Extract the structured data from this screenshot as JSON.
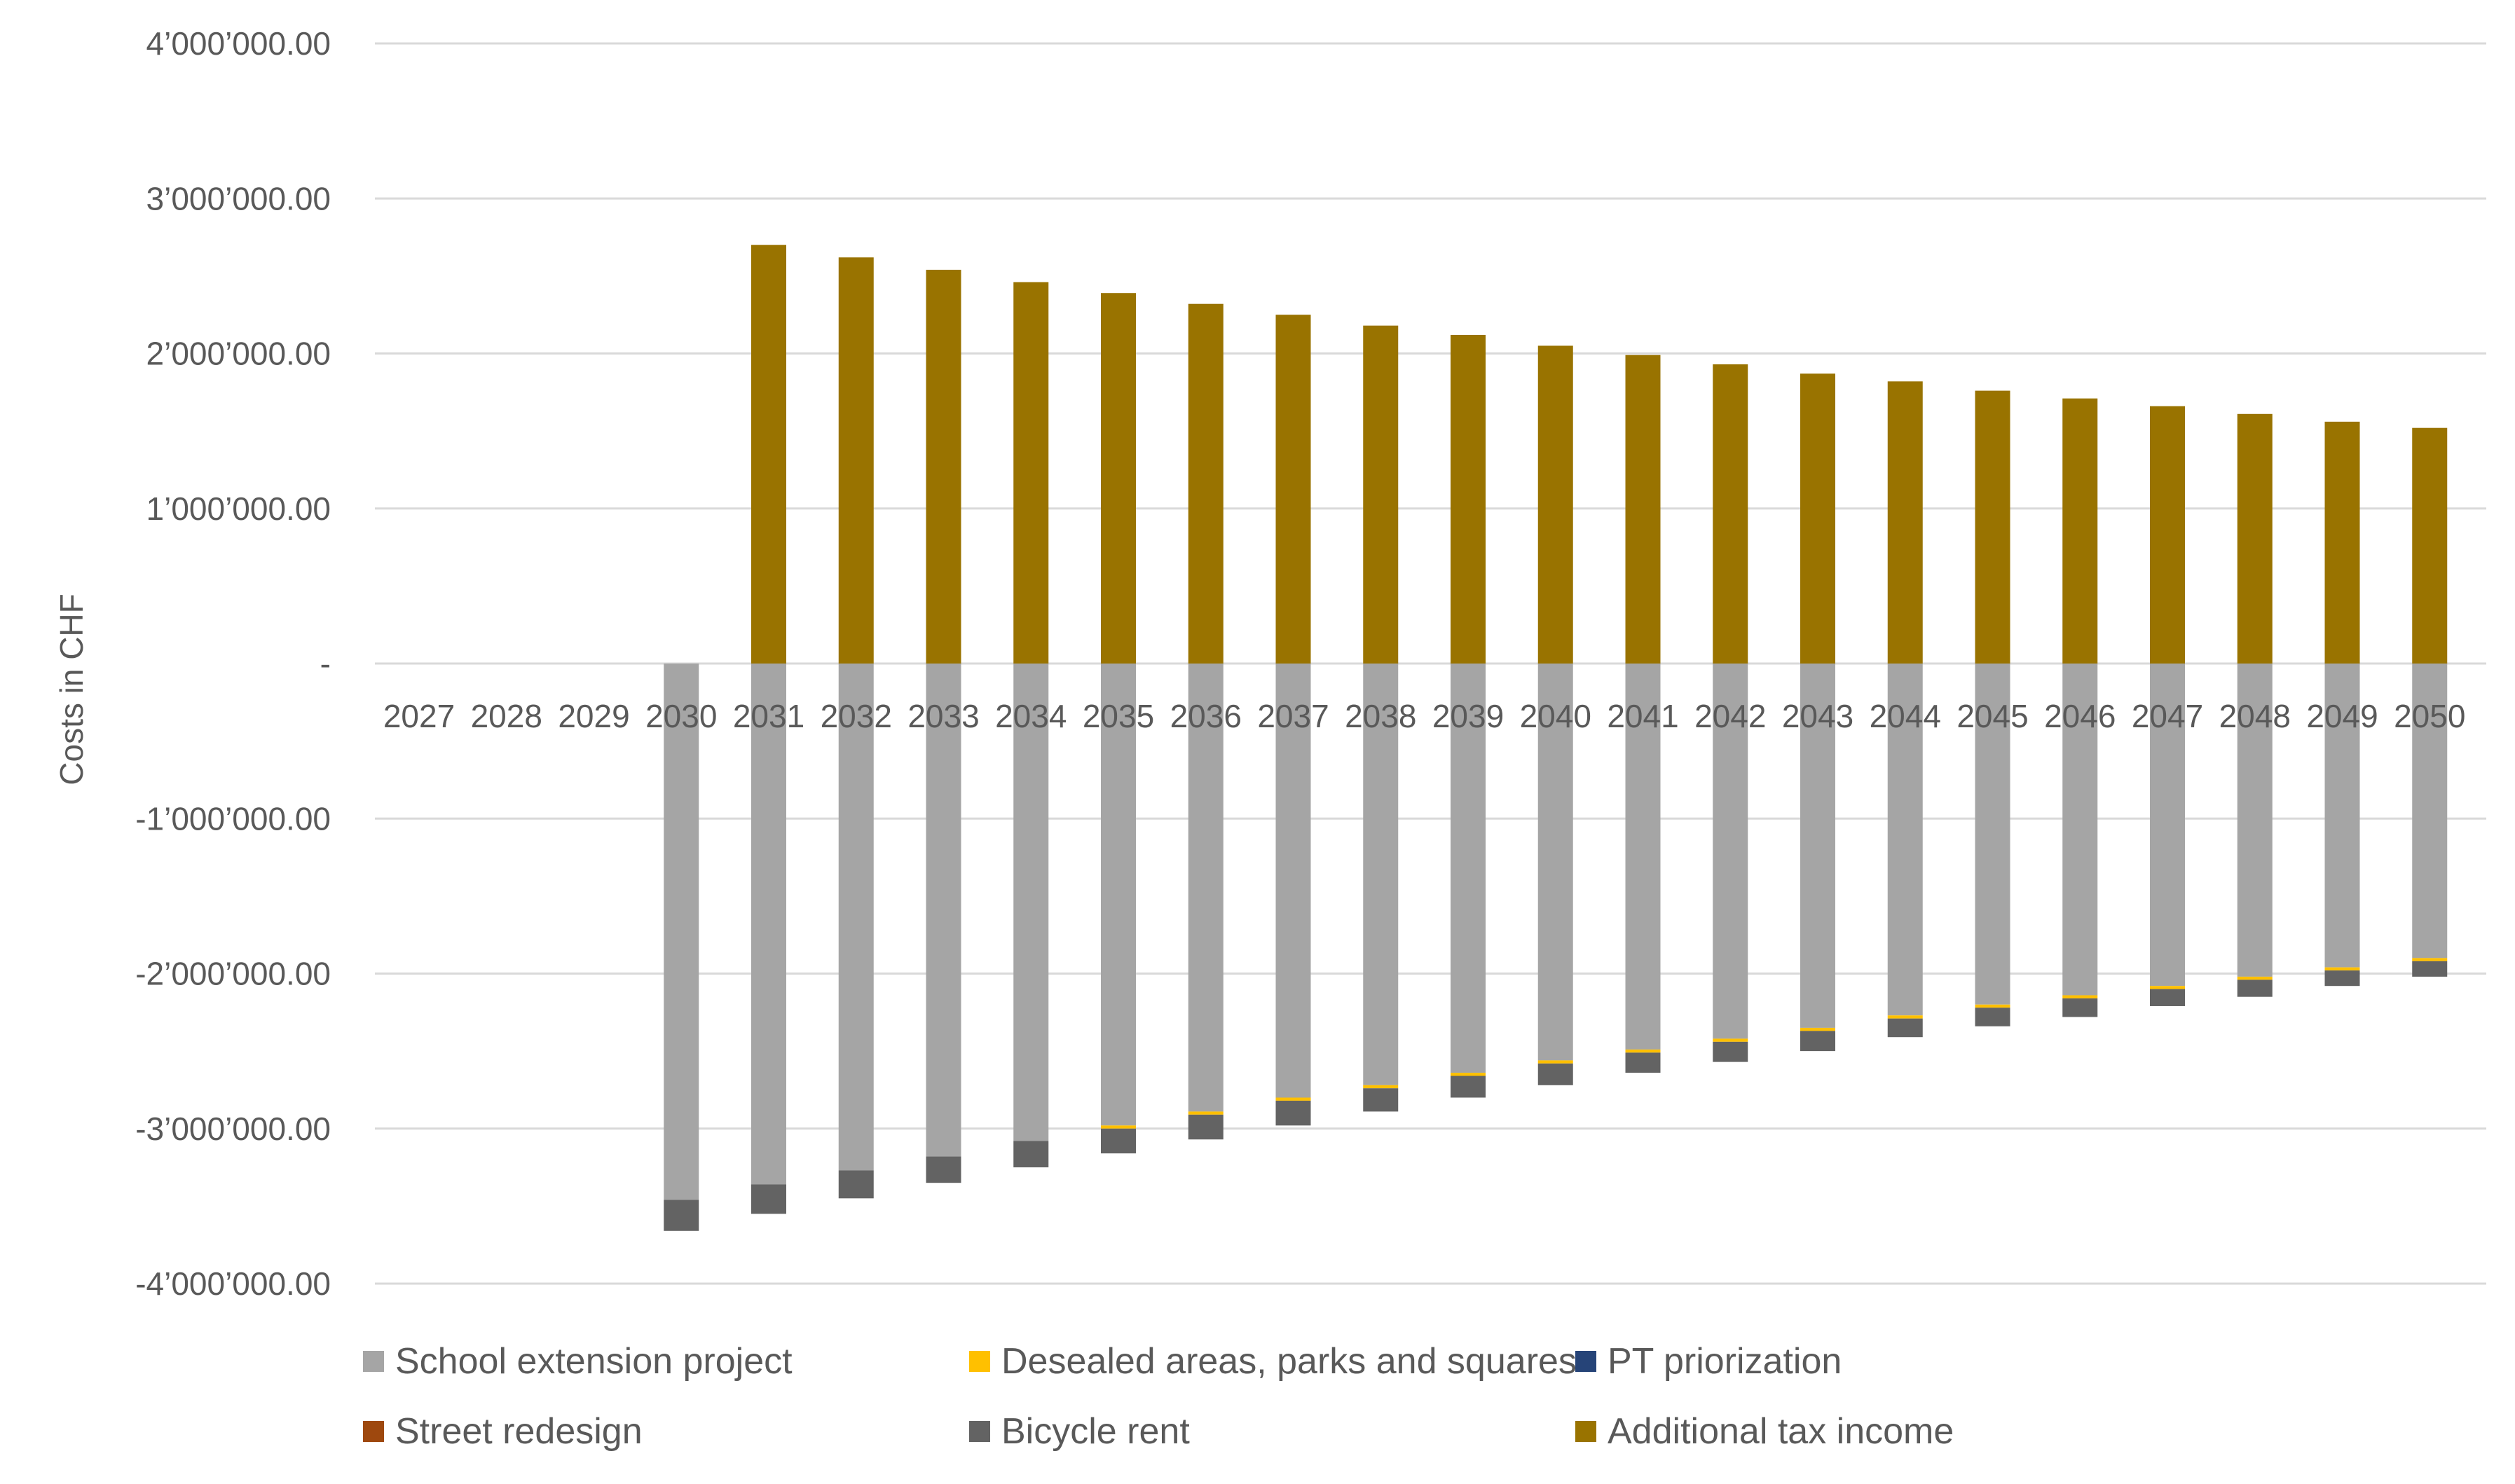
{
  "chart_data": {
    "type": "bar",
    "stacked": true,
    "title": "",
    "xlabel": "",
    "ylabel": "Costs in CHF",
    "ylim": [
      -4000000,
      4000000
    ],
    "y_ticks": [
      4000000,
      3000000,
      2000000,
      1000000,
      0,
      -1000000,
      -2000000,
      -3000000,
      -4000000
    ],
    "y_tick_labels": [
      "4’000’000.00",
      "3’000’000.00",
      "2’000’000.00",
      "1’000’000.00",
      "-",
      "-1’000’000.00",
      "-2’000’000.00",
      "-3’000’000.00",
      "-4’000’000.00"
    ],
    "grid": true,
    "legend_position": "bottom",
    "categories": [
      "2027",
      "2028",
      "2029",
      "2030",
      "2031",
      "2032",
      "2033",
      "2034",
      "2035",
      "2036",
      "2037",
      "2038",
      "2039",
      "2040",
      "2041",
      "2042",
      "2043",
      "2044",
      "2045",
      "2046",
      "2047",
      "2048",
      "2049",
      "2050"
    ],
    "series": [
      {
        "name": "School extension project",
        "color": "#A5A5A5",
        "values": [
          0,
          0,
          0,
          -3460000,
          -3360000,
          -3270000,
          -3180000,
          -3080000,
          -2980000,
          -2890000,
          -2800000,
          -2720000,
          -2640000,
          -2560000,
          -2490000,
          -2420000,
          -2350000,
          -2270000,
          -2200000,
          -2140000,
          -2080000,
          -2020000,
          -1960000,
          -1900000
        ]
      },
      {
        "name": "Desealed areas, parks and squares",
        "color": "#FFC000",
        "values": [
          0,
          0,
          0,
          0,
          0,
          0,
          0,
          0,
          -20000,
          -20000,
          -20000,
          -20000,
          -20000,
          -20000,
          -20000,
          -20000,
          -20000,
          -20000,
          -20000,
          -20000,
          -20000,
          -20000,
          -20000,
          -20000
        ]
      },
      {
        "name": "PT priorization",
        "color": "#264478",
        "values": [
          0,
          0,
          0,
          0,
          0,
          0,
          0,
          0,
          0,
          0,
          0,
          0,
          0,
          0,
          0,
          0,
          0,
          0,
          0,
          0,
          0,
          0,
          0,
          0
        ]
      },
      {
        "name": "Street redesign",
        "color": "#9E480E",
        "values": [
          0,
          0,
          0,
          0,
          0,
          0,
          0,
          0,
          0,
          0,
          0,
          0,
          0,
          0,
          0,
          0,
          0,
          0,
          0,
          0,
          0,
          0,
          0,
          0
        ]
      },
      {
        "name": "Bicycle rent",
        "color": "#636363",
        "values": [
          0,
          0,
          0,
          -200000,
          -190000,
          -180000,
          -170000,
          -170000,
          -160000,
          -160000,
          -160000,
          -150000,
          -140000,
          -140000,
          -130000,
          -130000,
          -130000,
          -120000,
          -120000,
          -120000,
          -110000,
          -110000,
          -100000,
          -100000
        ]
      },
      {
        "name": "Additional tax income",
        "color": "#997300",
        "values": [
          0,
          0,
          0,
          0,
          2700000,
          2620000,
          2540000,
          2460000,
          2390000,
          2320000,
          2250000,
          2180000,
          2120000,
          2050000,
          1990000,
          1930000,
          1870000,
          1820000,
          1760000,
          1710000,
          1660000,
          1610000,
          1560000,
          1520000
        ]
      }
    ]
  }
}
